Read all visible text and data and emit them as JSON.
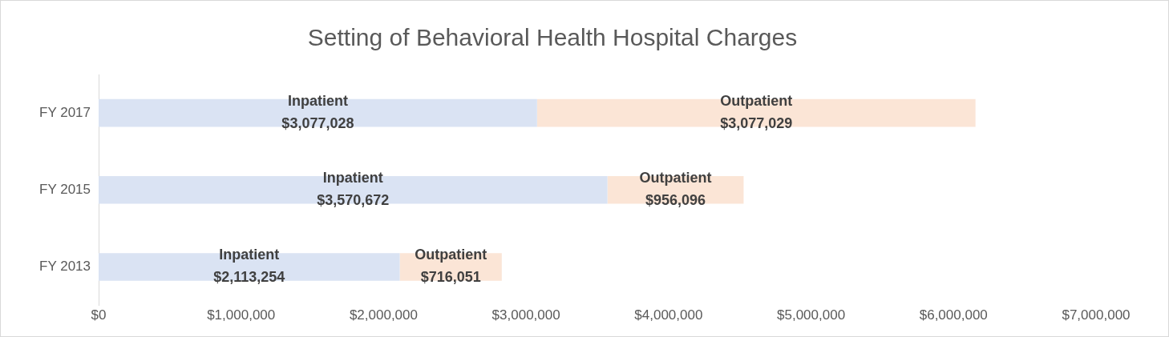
{
  "chart_data": {
    "type": "bar",
    "orientation": "horizontal",
    "stacked": true,
    "title": "Setting of Behavioral Health Hospital Charges",
    "categories": [
      "FY 2017",
      "FY 2015",
      "FY 2013"
    ],
    "series": [
      {
        "name": "Inpatient",
        "color": "#dae3f3",
        "values": [
          3077028,
          3570672,
          2113254
        ],
        "value_labels": [
          "$3,077,028",
          "$3,570,672",
          "$2,113,254"
        ]
      },
      {
        "name": "Outpatient",
        "color": "#fbe5d6",
        "values": [
          3077029,
          956096,
          716051
        ],
        "value_labels": [
          "$3,077,029",
          "$956,096",
          "$716,051"
        ]
      }
    ],
    "xlim": [
      0,
      7000000
    ],
    "xticks": [
      {
        "value": 0,
        "label": "$0"
      },
      {
        "value": 1000000,
        "label": "$1,000,000"
      },
      {
        "value": 2000000,
        "label": "$2,000,000"
      },
      {
        "value": 3000000,
        "label": "$3,000,000"
      },
      {
        "value": 4000000,
        "label": "$4,000,000"
      },
      {
        "value": 5000000,
        "label": "$5,000,000"
      },
      {
        "value": 6000000,
        "label": "$6,000,000"
      },
      {
        "value": 7000000,
        "label": "$7,000,000"
      }
    ]
  }
}
